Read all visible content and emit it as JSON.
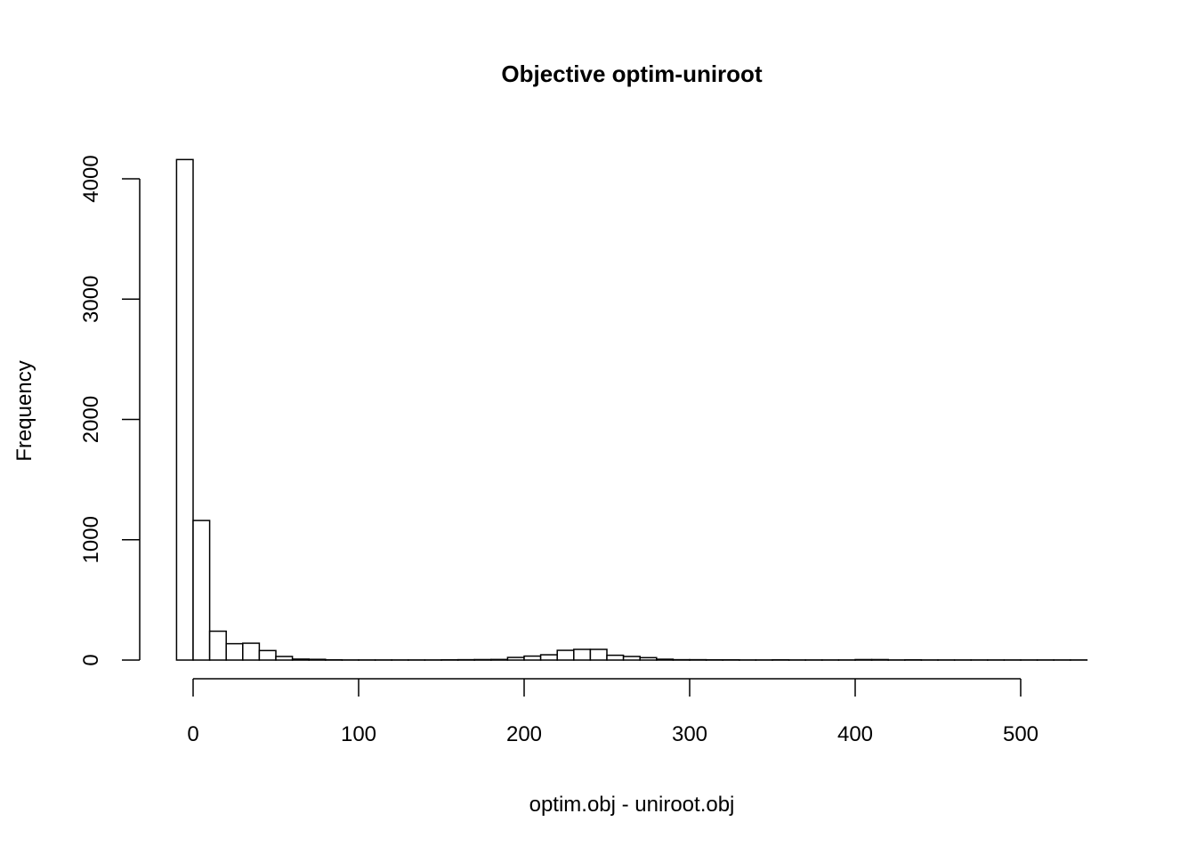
{
  "chart_data": {
    "type": "bar",
    "title": "Objective optim-uniroot",
    "xlabel": "optim.obj - uniroot.obj",
    "ylabel": "Frequency",
    "bin_width": 10,
    "bin_start": -10,
    "values": [
      4160,
      1160,
      240,
      136,
      140,
      79,
      30,
      8,
      6,
      2,
      1,
      1,
      1,
      1,
      1,
      1,
      2,
      3,
      4,
      5,
      22,
      33,
      44,
      81,
      89,
      89,
      40,
      30,
      20,
      7,
      3,
      3,
      2,
      2,
      1,
      1,
      2,
      1,
      1,
      1,
      1,
      4,
      4,
      1,
      2,
      1,
      1,
      1,
      1,
      1,
      1,
      1,
      1,
      1,
      1
    ],
    "xticks": [
      0,
      100,
      200,
      300,
      400,
      500
    ],
    "xtick_labels": [
      "0",
      "100",
      "200",
      "300",
      "400",
      "500"
    ],
    "yticks": [
      0,
      1000,
      2000,
      3000,
      4000
    ],
    "ytick_labels": [
      "0",
      "1000",
      "2000",
      "3000",
      "4000"
    ],
    "xlim": [
      -10,
      540
    ],
    "ylim": [
      0,
      4000
    ],
    "grid": false,
    "bar_fill": "#ffffff",
    "bar_stroke": "#000000"
  }
}
